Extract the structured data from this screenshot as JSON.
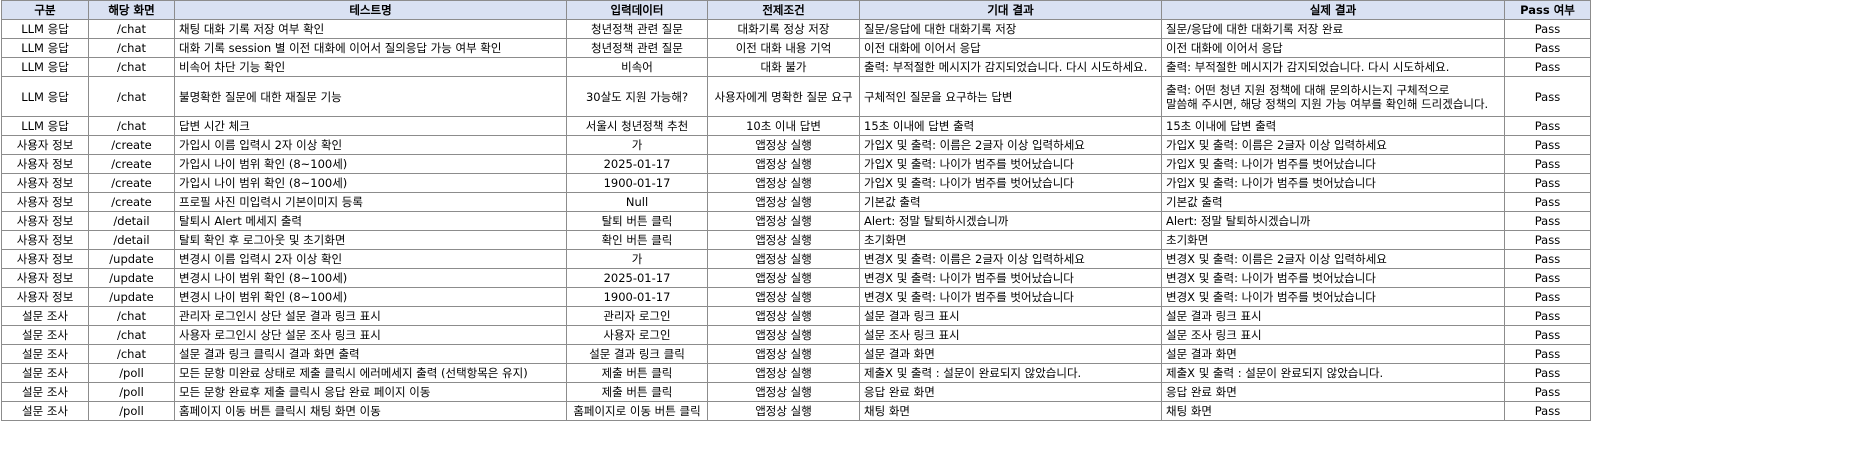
{
  "headers": [
    "구분",
    "해당 화면",
    "테스트명",
    "입력데이터",
    "전제조건",
    "기대 결과",
    "실제 결과",
    "Pass 여부"
  ],
  "rows": [
    [
      "LLM 응답",
      "/chat",
      "채팅 대화 기록 저장 여부 확인",
      "청년정책 관련 질문",
      "대화기록 정상 저장",
      "질문/응답에 대한 대화기록 저장",
      "질문/응답에 대한 대화기록 저장 완료",
      "Pass"
    ],
    [
      "LLM 응답",
      "/chat",
      "대화 기록 session 별 이전 대화에 이어서 질의응답 가능 여부 확인",
      "청년정책 관련 질문",
      "이전 대화 내용 기억",
      "이전 대화에 이어서 응답",
      "이전 대화에 이어서 응답",
      "Pass"
    ],
    [
      "LLM 응답",
      "/chat",
      "비속어 차단 기능 확인",
      "비속어",
      "대화 불가",
      "출력: 부적절한 메시지가 감지되었습니다. 다시 시도하세요.",
      "출력: 부적절한 메시지가 감지되었습니다. 다시 시도하세요.",
      "Pass"
    ],
    [
      "LLM 응답",
      "/chat",
      "불명확한 질문에 대한 재질문 기능",
      "30살도 지원 가능해?",
      "사용자에게 명확한 질문 요구",
      "구체적인 질문을 요구하는 답변",
      "출력: 어떤 청년 지원 정책에 대해 문의하시는지 구체적으로\n말씀해 주시면, 해당 정책의 지원 가능 여부를 확인해 드리겠습니다.",
      "Pass"
    ],
    [
      "LLM 응답",
      "/chat",
      "답변 시간 체크",
      "서울시 청년정책 추천",
      "10초 이내 답변",
      "15초 이내에 답변 출력",
      "15초 이내에 답변 출력",
      "Pass"
    ],
    [
      "사용자 정보",
      "/create",
      "가입시 이름 입력시 2자 이상 확인",
      "가",
      "앱정상 실행",
      "가입X 및 출력: 이름은 2글자 이상 입력하세요",
      "가입X 및 출력: 이름은 2글자 이상 입력하세요",
      "Pass"
    ],
    [
      "사용자 정보",
      "/create",
      "가입시 나이 범위 확인 (8~100세)",
      "2025-01-17",
      "앱정상 실행",
      "가입X 및 출력: 나이가 범주를 벗어났습니다",
      "가입X 및 출력: 나이가 범주를 벗어났습니다",
      "Pass"
    ],
    [
      "사용자 정보",
      "/create",
      "가입시 나이 범위 확인 (8~100세)",
      "1900-01-17",
      "앱정상 실행",
      "가입X 및 출력: 나이가 범주를 벗어났습니다",
      "가입X 및 출력: 나이가 범주를 벗어났습니다",
      "Pass"
    ],
    [
      "사용자 정보",
      "/create",
      "프로필 사진 미입력시 기본이미지 등록",
      "Null",
      "앱정상 실행",
      "기본값 출력",
      "기본값 출력",
      "Pass"
    ],
    [
      "사용자 정보",
      "/detail",
      "탈퇴시 Alert 메세지 출력",
      "탈퇴 버튼 클릭",
      "앱정상 실행",
      "Alert: 정말 탈퇴하시겠습니까",
      "Alert: 정말 탈퇴하시겠습니까",
      "Pass"
    ],
    [
      "사용자 정보",
      "/detail",
      "탈퇴 확인 후 로그아웃 및 초기화면",
      "확인 버튼 클릭",
      "앱정상 실행",
      "초기화면",
      "초기화면",
      "Pass"
    ],
    [
      "사용자 정보",
      "/update",
      "변경시 이름 입력시 2자 이상 확인",
      "가",
      "앱정상 실행",
      "변경X 및 출력: 이름은 2글자 이상 입력하세요",
      "변경X 및 출력: 이름은 2글자 이상 입력하세요",
      "Pass"
    ],
    [
      "사용자 정보",
      "/update",
      "변경시 나이 범위 확인 (8~100세)",
      "2025-01-17",
      "앱정상 실행",
      "변경X 및 출력: 나이가 범주를 벗어났습니다",
      "변경X 및 출력: 나이가 범주를 벗어났습니다",
      "Pass"
    ],
    [
      "사용자 정보",
      "/update",
      "변경시 나이 범위 확인 (8~100세)",
      "1900-01-17",
      "앱정상 실행",
      "변경X 및 출력: 나이가 범주를 벗어났습니다",
      "변경X 및 출력: 나이가 범주를 벗어났습니다",
      "Pass"
    ],
    [
      "설문 조사",
      "/chat",
      "관리자 로그인시 상단 설문 결과 링크 표시",
      "관리자 로그인",
      "앱정상 실행",
      "설문 결과 링크 표시",
      "설문 결과 링크 표시",
      "Pass"
    ],
    [
      "설문 조사",
      "/chat",
      "사용자 로그인시 상단 설문 조사 링크 표시",
      "사용자 로그인",
      "앱정상 실행",
      "설문 조사 링크 표시",
      "설문 조사 링크 표시",
      "Pass"
    ],
    [
      "설문 조사",
      "/chat",
      "설문 결과 링크 클릭시 결과 화면 출력",
      "설문 결과 링크 클릭",
      "앱정상 실행",
      "설문 결과 화면",
      "설문 결과 화면",
      "Pass"
    ],
    [
      "설문 조사",
      "/poll",
      "모든 문항 미완료 상태로 제출 클릭시 에러메세지 출력 (선택항목은 유지)",
      "제출 버튼 클릭",
      "앱정상 실행",
      "제출X 및 출력 : 설문이 완료되지 않았습니다.",
      "제출X 및 출력 : 설문이 완료되지 않았습니다.",
      "Pass"
    ],
    [
      "설문 조사",
      "/poll",
      "모든 문항 완료후 제출 클릭시 응답 완료 페이지 이동",
      "제출 버튼 클릭",
      "앱정상 실행",
      "응답 완료 화면",
      "응답 완료 화면",
      "Pass"
    ],
    [
      "설문 조사",
      "/poll",
      "홈페이지 이동 버튼 클릭시 채팅 화면 이동",
      "홈페이지로 이동 버튼 클릭",
      "앱정상 실행",
      "채팅 화면",
      "채팅 화면",
      "Pass"
    ]
  ]
}
